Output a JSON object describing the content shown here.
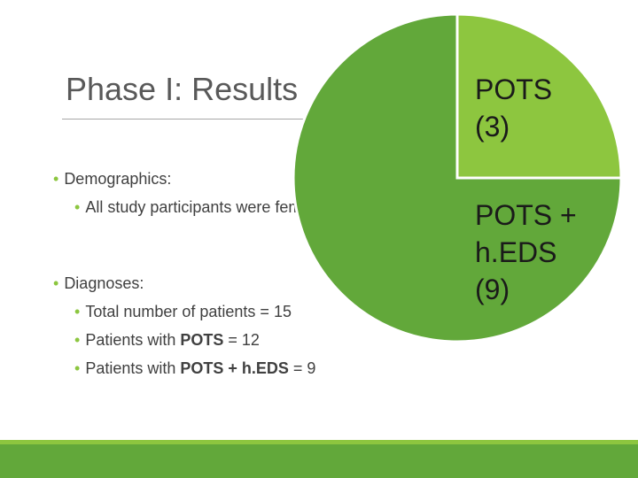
{
  "slide": {
    "title": "Phase I: Results",
    "bullets": {
      "demographics": "Demographics:",
      "participants": "All study participants were female",
      "diagnoses": "Diagnoses:",
      "total_prefix": "Total number of patients = 15",
      "pots_prefix": "Patients with ",
      "pots_bold": "POTS",
      "pots_suffix": " = 12",
      "heds_prefix": "Patients with ",
      "heds_bold": "POTS + h.EDS",
      "heds_suffix": " = 9"
    }
  },
  "chart_data": {
    "type": "pie",
    "slices": [
      {
        "label_line1": "POTS",
        "label_line2": "(3)",
        "value": 3,
        "color": "#8dc63f"
      },
      {
        "label_line1": "POTS +",
        "label_line2": "h.EDS",
        "label_line3": "(9)",
        "value": 9,
        "color": "#62a83a"
      }
    ]
  },
  "theme": {
    "accent": "#8cc63f",
    "bar": "#62a83a"
  }
}
